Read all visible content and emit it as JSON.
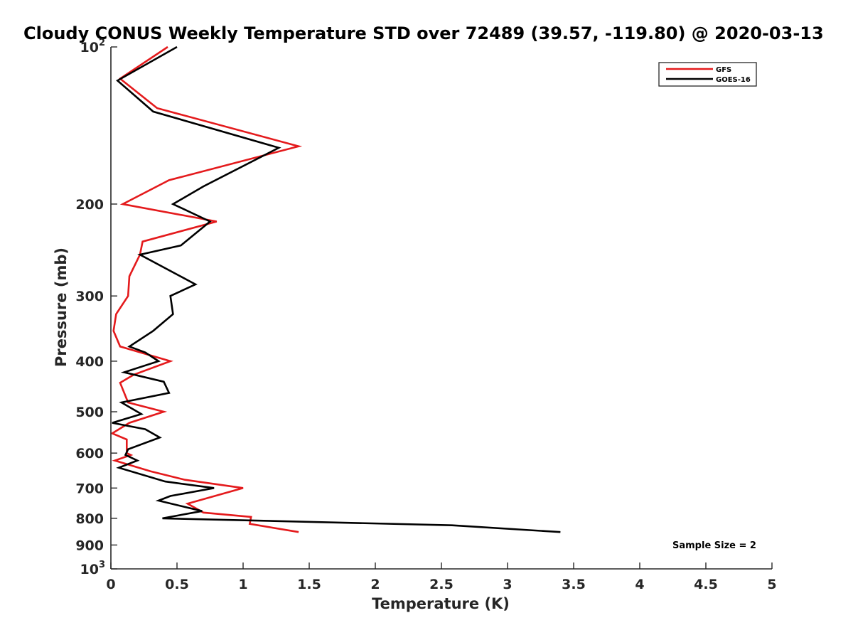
{
  "chart_data": {
    "type": "line",
    "title": "Cloudy CONUS Weekly Temperature STD over 72489 (39.57, -119.80) @ 2020-03-13",
    "xlabel": "Temperature (K)",
    "ylabel": "Pressure (mb)",
    "xlim": [
      0,
      5
    ],
    "ylim": [
      1000,
      100
    ],
    "y_scale": "log",
    "y_reversed": true,
    "x_ticks": [
      "0",
      "0.5",
      "1",
      "1.5",
      "2",
      "2.5",
      "3",
      "3.5",
      "4",
      "4.5",
      "5"
    ],
    "y_ticks": [
      {
        "value": 100,
        "base": "10",
        "exp": "2"
      },
      {
        "value": 200,
        "label": "200"
      },
      {
        "value": 300,
        "label": "300"
      },
      {
        "value": 400,
        "label": "400"
      },
      {
        "value": 500,
        "label": "500"
      },
      {
        "value": 600,
        "label": "600"
      },
      {
        "value": 700,
        "label": "700"
      },
      {
        "value": 800,
        "label": "800"
      },
      {
        "value": 900,
        "label": "900"
      },
      {
        "value": 1000,
        "base": "10",
        "exp": "3"
      }
    ],
    "legend_position": "top-right",
    "grid": false,
    "annotation": "Sample Size = 2",
    "series": [
      {
        "name": "GFS",
        "color": "#e41a1c",
        "points": [
          [
            0.43,
            100
          ],
          [
            0.07,
            115
          ],
          [
            0.35,
            131
          ],
          [
            1.42,
            155
          ],
          [
            0.44,
            180
          ],
          [
            0.09,
            200
          ],
          [
            0.8,
            216
          ],
          [
            0.24,
            236
          ],
          [
            0.22,
            250
          ],
          [
            0.14,
            275
          ],
          [
            0.13,
            300
          ],
          [
            0.04,
            325
          ],
          [
            0.02,
            350
          ],
          [
            0.07,
            375
          ],
          [
            0.45,
            400
          ],
          [
            0.17,
            425
          ],
          [
            0.07,
            440
          ],
          [
            0.13,
            480
          ],
          [
            0.4,
            500
          ],
          [
            0.14,
            525
          ],
          [
            0.01,
            550
          ],
          [
            0.12,
            565
          ],
          [
            0.12,
            600
          ],
          [
            0.15,
            605
          ],
          [
            0.03,
            620
          ],
          [
            0.3,
            650
          ],
          [
            0.56,
            675
          ],
          [
            1.0,
            700
          ],
          [
            0.58,
            750
          ],
          [
            0.7,
            780
          ],
          [
            1.06,
            795
          ],
          [
            1.05,
            820
          ],
          [
            1.42,
            850
          ]
        ]
      },
      {
        "name": "GOES-16",
        "color": "#000000",
        "points": [
          [
            0.5,
            100
          ],
          [
            0.05,
            116
          ],
          [
            0.32,
            133
          ],
          [
            1.27,
            156
          ],
          [
            0.7,
            185
          ],
          [
            0.47,
            200
          ],
          [
            0.75,
            216
          ],
          [
            0.53,
            240
          ],
          [
            0.22,
            250
          ],
          [
            0.64,
            285
          ],
          [
            0.45,
            300
          ],
          [
            0.47,
            325
          ],
          [
            0.32,
            350
          ],
          [
            0.14,
            375
          ],
          [
            0.26,
            385
          ],
          [
            0.36,
            400
          ],
          [
            0.1,
            420
          ],
          [
            0.4,
            438
          ],
          [
            0.44,
            460
          ],
          [
            0.08,
            480
          ],
          [
            0.23,
            505
          ],
          [
            0.01,
            525
          ],
          [
            0.26,
            540
          ],
          [
            0.37,
            560
          ],
          [
            0.13,
            590
          ],
          [
            0.11,
            605
          ],
          [
            0.2,
            620
          ],
          [
            0.06,
            640
          ],
          [
            0.41,
            680
          ],
          [
            0.78,
            700
          ],
          [
            0.45,
            725
          ],
          [
            0.36,
            740
          ],
          [
            0.69,
            775
          ],
          [
            0.39,
            800
          ],
          [
            2.58,
            825
          ],
          [
            3.4,
            850
          ]
        ]
      }
    ]
  }
}
